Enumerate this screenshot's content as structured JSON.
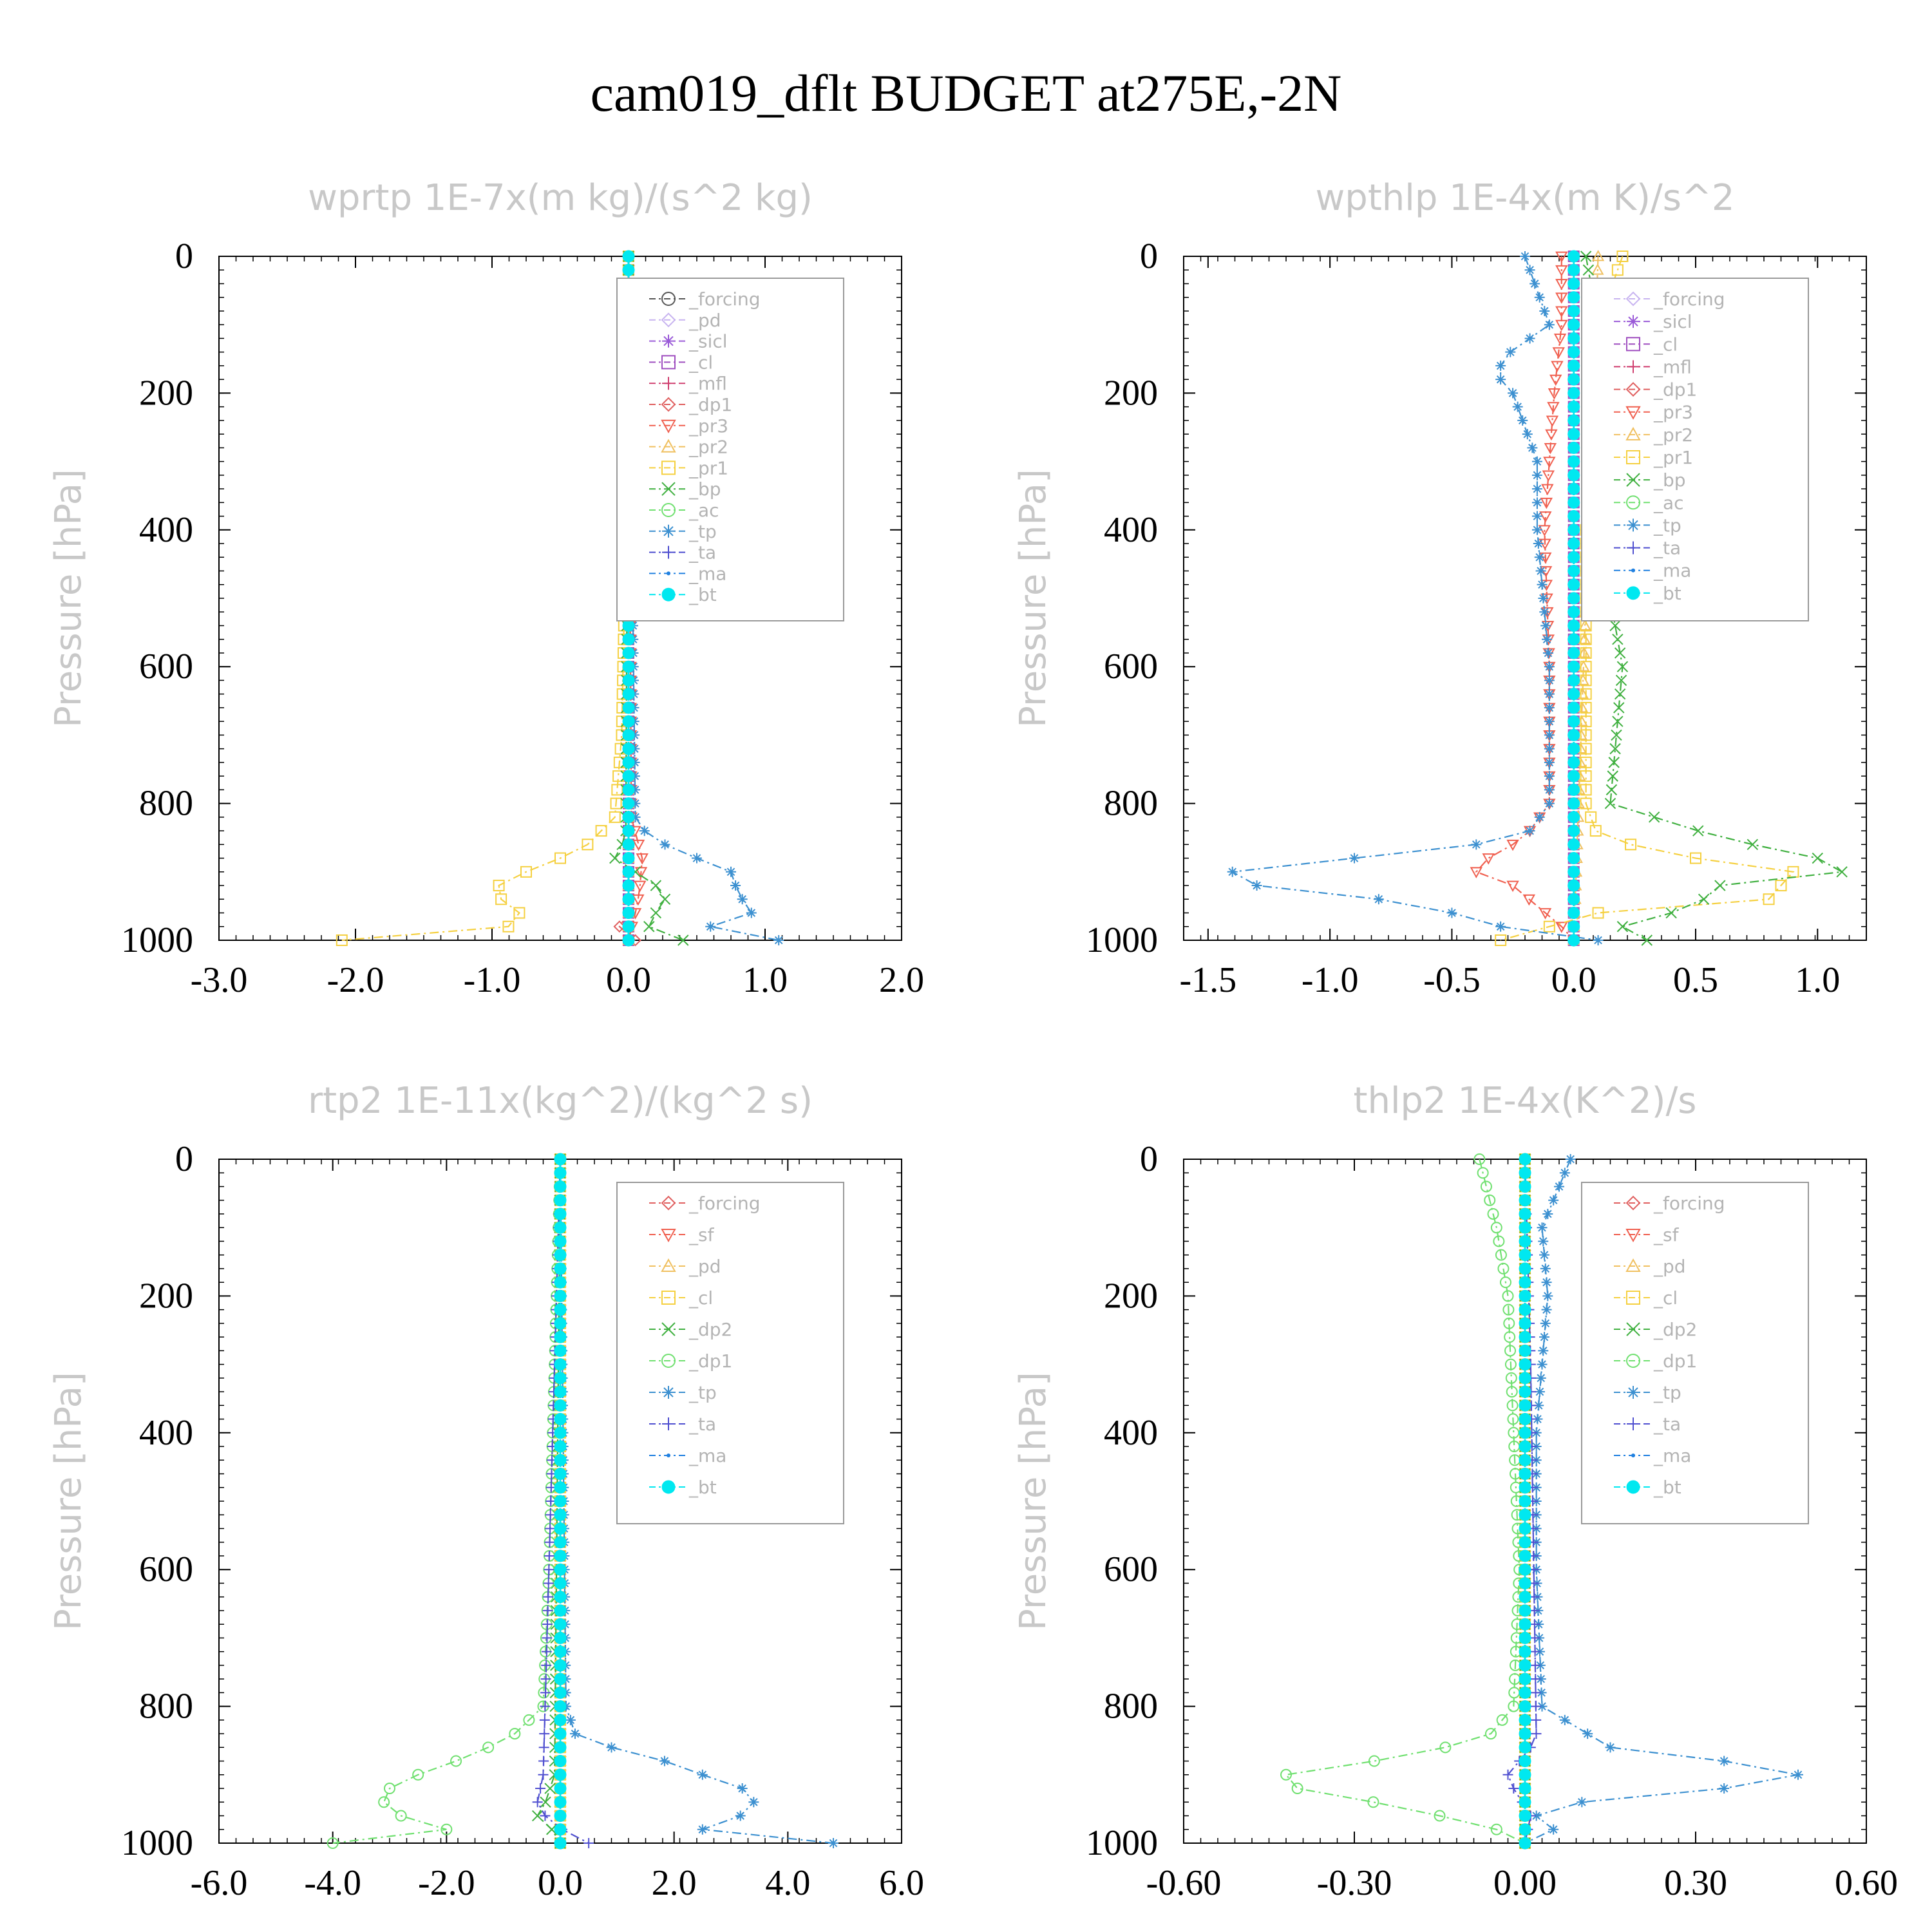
{
  "title": "cam019_dflt  BUDGET at275E,-2N",
  "chart_data": [
    {
      "type": "line",
      "title": "wprtp  1E-7x(m kg)/(s^2 kg)",
      "ylabel": "Pressure [hPa]",
      "xlabel": "",
      "xlim": [
        -3.0,
        2.0
      ],
      "ylim": [
        1000,
        0
      ],
      "xticks": [
        "-3.0",
        "-2.0",
        "-1.0",
        "0.0",
        "1.0",
        "2.0"
      ],
      "yticks": [
        "0",
        "200",
        "400",
        "600",
        "800",
        "1000"
      ],
      "legend_position": "top-right",
      "series": [
        {
          "name": "_forcing",
          "color": "#555555",
          "marker": "circle",
          "pressure": [
            0,
            500,
            850,
            1000
          ],
          "values": [
            0,
            0,
            0,
            0
          ]
        },
        {
          "name": "_pd",
          "color": "#c8b4f0",
          "marker": "diamond",
          "pressure": [
            0,
            1000
          ],
          "values": [
            0,
            0
          ]
        },
        {
          "name": "_sicl",
          "color": "#9a5ad8",
          "marker": "star",
          "pressure": [
            0,
            1000
          ],
          "values": [
            0,
            0
          ]
        },
        {
          "name": "_cl",
          "color": "#a050c0",
          "marker": "square",
          "pressure": [
            0,
            1000
          ],
          "values": [
            0,
            0
          ]
        },
        {
          "name": "_mfl",
          "color": "#d04070",
          "marker": "plus",
          "pressure": [
            0,
            1000
          ],
          "values": [
            0,
            0
          ]
        },
        {
          "name": "_dp1",
          "color": "#e06060",
          "marker": "diamond",
          "pressure": [
            0,
            960,
            990,
            1000
          ],
          "values": [
            0,
            0,
            -0.1,
            0.05
          ]
        },
        {
          "name": "_pr3",
          "color": "#f06050",
          "marker": "triangle-down",
          "pressure": [
            0,
            820,
            880,
            930,
            960,
            1000
          ],
          "values": [
            0,
            0.02,
            0.1,
            0.08,
            0.05,
            0
          ]
        },
        {
          "name": "_pr2",
          "color": "#f0c060",
          "marker": "triangle",
          "pressure": [
            0,
            1000
          ],
          "values": [
            0,
            0
          ]
        },
        {
          "name": "_pr1",
          "color": "#f5d040",
          "marker": "square",
          "pressure": [
            0,
            400,
            700,
            820,
            860,
            890,
            910,
            930,
            960,
            985,
            1000
          ],
          "values": [
            0,
            -0.02,
            -0.05,
            -0.1,
            -0.3,
            -0.6,
            -0.9,
            -1.0,
            -0.8,
            -0.9,
            -2.1
          ]
        },
        {
          "name": "_bp",
          "color": "#40b040",
          "marker": "x",
          "pressure": [
            0,
            850,
            880,
            920,
            950,
            970,
            990,
            1000
          ],
          "values": [
            0,
            -0.02,
            -0.1,
            0.2,
            0.3,
            0.1,
            0.2,
            0.4
          ]
        },
        {
          "name": "_ac",
          "color": "#70e070",
          "marker": "circle",
          "pressure": [
            0,
            1000
          ],
          "values": [
            0,
            0
          ]
        },
        {
          "name": "_tp",
          "color": "#3c90d0",
          "marker": "asterisk",
          "pressure": [
            0,
            820,
            850,
            880,
            900,
            930,
            960,
            980,
            1000
          ],
          "values": [
            0,
            0.05,
            0.15,
            0.5,
            0.75,
            0.8,
            0.9,
            0.6,
            1.1
          ]
        },
        {
          "name": "_ta",
          "color": "#5050d0",
          "marker": "plus",
          "pressure": [
            0,
            1000
          ],
          "values": [
            0,
            0
          ]
        },
        {
          "name": "_ma",
          "color": "#2080e0",
          "marker": "dot",
          "pressure": [
            0,
            1000
          ],
          "values": [
            0,
            0
          ]
        },
        {
          "name": "_bt",
          "color": "#00e8f0",
          "marker": "filled-circle",
          "pressure": [
            0,
            1000
          ],
          "values": [
            0,
            0
          ]
        }
      ]
    },
    {
      "type": "line",
      "title": "wpthlp  1E-4x(m K)/s^2",
      "ylabel": "Pressure [hPa]",
      "xlabel": "",
      "xlim": [
        -1.6,
        1.2
      ],
      "ylim": [
        1000,
        0
      ],
      "xticks": [
        "-1.5",
        "-1.0",
        "-0.5",
        "0.0",
        "0.5",
        "1.0"
      ],
      "yticks": [
        "0",
        "200",
        "400",
        "600",
        "800",
        "1000"
      ],
      "legend_position": "top-right",
      "series": [
        {
          "name": "_forcing",
          "color": "#c8b4f0",
          "marker": "diamond",
          "pressure": [
            0,
            1000
          ],
          "values": [
            0,
            0
          ]
        },
        {
          "name": "_sicl",
          "color": "#9a5ad8",
          "marker": "star",
          "pressure": [
            0,
            1000
          ],
          "values": [
            0,
            0
          ]
        },
        {
          "name": "_cl",
          "color": "#a050c0",
          "marker": "square",
          "pressure": [
            0,
            1000
          ],
          "values": [
            0,
            0
          ]
        },
        {
          "name": "_mfl",
          "color": "#d04070",
          "marker": "plus",
          "pressure": [
            0,
            1000
          ],
          "values": [
            0,
            0
          ]
        },
        {
          "name": "_dp1",
          "color": "#e06060",
          "marker": "diamond",
          "pressure": [
            0,
            800,
            1000
          ],
          "values": [
            0,
            0,
            0
          ]
        },
        {
          "name": "_pr3",
          "color": "#f06050",
          "marker": "triangle-down",
          "pressure": [
            0,
            100,
            200,
            400,
            600,
            800,
            850,
            880,
            900,
            920,
            950,
            980,
            1000
          ],
          "values": [
            -0.05,
            -0.05,
            -0.08,
            -0.12,
            -0.1,
            -0.1,
            -0.2,
            -0.35,
            -0.4,
            -0.25,
            -0.15,
            -0.05,
            0
          ]
        },
        {
          "name": "_pr2",
          "color": "#f0c060",
          "marker": "triangle",
          "pressure": [
            0,
            1000
          ],
          "values": [
            0.1,
            0
          ]
        },
        {
          "name": "_pr1",
          "color": "#f5d040",
          "marker": "square",
          "pressure": [
            0,
            100,
            150,
            200,
            300,
            400,
            600,
            800,
            850,
            880,
            900,
            940,
            960,
            1000
          ],
          "values": [
            0.2,
            0.1,
            0.2,
            0.15,
            0.1,
            0.05,
            0.05,
            0.05,
            0.1,
            0.5,
            0.9,
            0.8,
            0.1,
            -0.3
          ]
        },
        {
          "name": "_bp",
          "color": "#40b040",
          "marker": "x",
          "pressure": [
            0,
            100,
            150,
            200,
            300,
            400,
            500,
            600,
            800,
            850,
            880,
            900,
            920,
            950,
            980,
            1000
          ],
          "values": [
            0.05,
            0.1,
            0.25,
            0.2,
            0.25,
            0.15,
            0.15,
            0.2,
            0.15,
            0.6,
            1.0,
            1.1,
            0.6,
            0.5,
            0.2,
            0.3
          ]
        },
        {
          "name": "_ac",
          "color": "#70e070",
          "marker": "circle",
          "pressure": [
            0,
            1000
          ],
          "values": [
            0,
            0
          ]
        },
        {
          "name": "_tp",
          "color": "#3c90d0",
          "marker": "asterisk",
          "pressure": [
            0,
            100,
            150,
            180,
            200,
            300,
            400,
            600,
            800,
            850,
            870,
            890,
            910,
            930,
            950,
            980,
            1000
          ],
          "values": [
            -0.2,
            -0.1,
            -0.3,
            -0.3,
            -0.25,
            -0.15,
            -0.15,
            -0.1,
            -0.1,
            -0.2,
            -0.6,
            -1.2,
            -1.6,
            -1.0,
            -0.6,
            -0.3,
            0.1
          ]
        },
        {
          "name": "_ta",
          "color": "#5050d0",
          "marker": "plus",
          "pressure": [
            0,
            1000
          ],
          "values": [
            0,
            0
          ]
        },
        {
          "name": "_ma",
          "color": "#2080e0",
          "marker": "dot",
          "pressure": [
            0,
            1000
          ],
          "values": [
            0,
            0
          ]
        },
        {
          "name": "_bt",
          "color": "#00e8f0",
          "marker": "filled-circle",
          "pressure": [
            0,
            1000
          ],
          "values": [
            0,
            0
          ]
        }
      ]
    },
    {
      "type": "line",
      "title": "rtp2  1E-11x(kg^2)/(kg^2 s)",
      "ylabel": "Pressure [hPa]",
      "xlabel": "",
      "xlim": [
        -6.0,
        6.0
      ],
      "ylim": [
        1000,
        0
      ],
      "xticks": [
        "-6.0",
        "-4.0",
        "-2.0",
        "0.0",
        "2.0",
        "4.0",
        "6.0"
      ],
      "yticks": [
        "0",
        "200",
        "400",
        "600",
        "800",
        "1000"
      ],
      "legend_position": "top-right",
      "series": [
        {
          "name": "_forcing",
          "color": "#e06060",
          "marker": "diamond",
          "pressure": [
            0,
            1000
          ],
          "values": [
            0,
            0
          ]
        },
        {
          "name": "_sf",
          "color": "#f06050",
          "marker": "triangle-down",
          "pressure": [
            0,
            1000
          ],
          "values": [
            0,
            0
          ]
        },
        {
          "name": "_pd",
          "color": "#f0c060",
          "marker": "triangle",
          "pressure": [
            0,
            1000
          ],
          "values": [
            0,
            0
          ]
        },
        {
          "name": "_cl",
          "color": "#f5d040",
          "marker": "square",
          "pressure": [
            0,
            1000
          ],
          "values": [
            0,
            0
          ]
        },
        {
          "name": "_dp2",
          "color": "#40b040",
          "marker": "x",
          "pressure": [
            0,
            900,
            950,
            970,
            990,
            1000
          ],
          "values": [
            0,
            -0.1,
            -0.3,
            -0.5,
            0.2,
            0
          ]
        },
        {
          "name": "_dp1",
          "color": "#70e070",
          "marker": "circle",
          "pressure": [
            0,
            600,
            800,
            840,
            870,
            900,
            920,
            940,
            960,
            980,
            1000
          ],
          "values": [
            0,
            -0.2,
            -0.3,
            -0.8,
            -1.5,
            -2.5,
            -3.0,
            -3.1,
            -2.8,
            -2.0,
            -4.0
          ]
        },
        {
          "name": "_tp",
          "color": "#3c90d0",
          "marker": "asterisk",
          "pressure": [
            0,
            800,
            850,
            870,
            900,
            920,
            950,
            980,
            1000
          ],
          "values": [
            0,
            0.1,
            0.3,
            1.5,
            2.5,
            3.2,
            3.5,
            2.5,
            4.8
          ]
        },
        {
          "name": "_ta",
          "color": "#5050d0",
          "marker": "plus",
          "pressure": [
            0,
            900,
            940,
            970,
            1000
          ],
          "values": [
            0,
            -0.3,
            -0.4,
            -0.2,
            0.5
          ]
        },
        {
          "name": "_ma",
          "color": "#2080e0",
          "marker": "dot",
          "pressure": [
            0,
            1000
          ],
          "values": [
            0,
            0
          ]
        },
        {
          "name": "_bt",
          "color": "#00e8f0",
          "marker": "filled-circle",
          "pressure": [
            0,
            1000
          ],
          "values": [
            0,
            0
          ]
        }
      ]
    },
    {
      "type": "line",
      "title": "thlp2  1E-4x(K^2)/s",
      "ylabel": "Pressure [hPa]",
      "xlabel": "",
      "xlim": [
        -0.6,
        0.6
      ],
      "ylim": [
        1000,
        0
      ],
      "xticks": [
        "-0.60",
        "-0.30",
        "0.00",
        "0.30",
        "0.60"
      ],
      "yticks": [
        "0",
        "200",
        "400",
        "600",
        "800",
        "1000"
      ],
      "legend_position": "top-right",
      "series": [
        {
          "name": "_forcing",
          "color": "#e06060",
          "marker": "diamond",
          "pressure": [
            0,
            1000
          ],
          "values": [
            0,
            0
          ]
        },
        {
          "name": "_sf",
          "color": "#f06050",
          "marker": "triangle-down",
          "pressure": [
            0,
            1000
          ],
          "values": [
            0,
            0
          ]
        },
        {
          "name": "_pd",
          "color": "#f0c060",
          "marker": "triangle",
          "pressure": [
            0,
            1000
          ],
          "values": [
            0,
            0
          ]
        },
        {
          "name": "_cl",
          "color": "#f5d040",
          "marker": "square",
          "pressure": [
            0,
            1000
          ],
          "values": [
            0,
            0
          ]
        },
        {
          "name": "_dp2",
          "color": "#40b040",
          "marker": "x",
          "pressure": [
            0,
            1000
          ],
          "values": [
            0,
            0
          ]
        },
        {
          "name": "_dp1",
          "color": "#70e070",
          "marker": "circle",
          "pressure": [
            0,
            100,
            200,
            400,
            600,
            800,
            840,
            870,
            890,
            900,
            920,
            950,
            980,
            1000
          ],
          "values": [
            -0.08,
            -0.05,
            -0.03,
            -0.02,
            -0.01,
            -0.02,
            -0.06,
            -0.18,
            -0.35,
            -0.42,
            -0.4,
            -0.2,
            -0.05,
            0
          ]
        },
        {
          "name": "_tp",
          "color": "#3c90d0",
          "marker": "asterisk",
          "pressure": [
            0,
            100,
            200,
            400,
            600,
            800,
            860,
            880,
            900,
            920,
            940,
            960,
            980,
            1000
          ],
          "values": [
            0.08,
            0.03,
            0.04,
            0.02,
            0.02,
            0.03,
            0.15,
            0.35,
            0.48,
            0.35,
            0.1,
            0.02,
            0.05,
            0
          ]
        },
        {
          "name": "_ta",
          "color": "#5050d0",
          "marker": "plus",
          "pressure": [
            0,
            300,
            850,
            900,
            920,
            960,
            1000
          ],
          "values": [
            0,
            0.01,
            0.02,
            -0.03,
            -0.02,
            0.01,
            0
          ]
        },
        {
          "name": "_ma",
          "color": "#2080e0",
          "marker": "dot",
          "pressure": [
            0,
            1000
          ],
          "values": [
            0,
            0
          ]
        },
        {
          "name": "_bt",
          "color": "#00e8f0",
          "marker": "filled-circle",
          "pressure": [
            0,
            1000
          ],
          "values": [
            0,
            0
          ]
        }
      ]
    }
  ]
}
